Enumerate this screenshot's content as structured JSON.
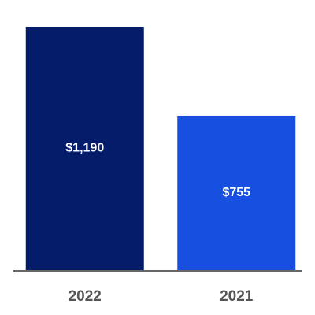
{
  "chart_data": {
    "type": "bar",
    "categories": [
      "2022",
      "2021"
    ],
    "values": [
      1190,
      755
    ],
    "value_labels": [
      "$1,190",
      "$755"
    ],
    "colors": [
      "#051c6b",
      "#1750e0"
    ]
  }
}
